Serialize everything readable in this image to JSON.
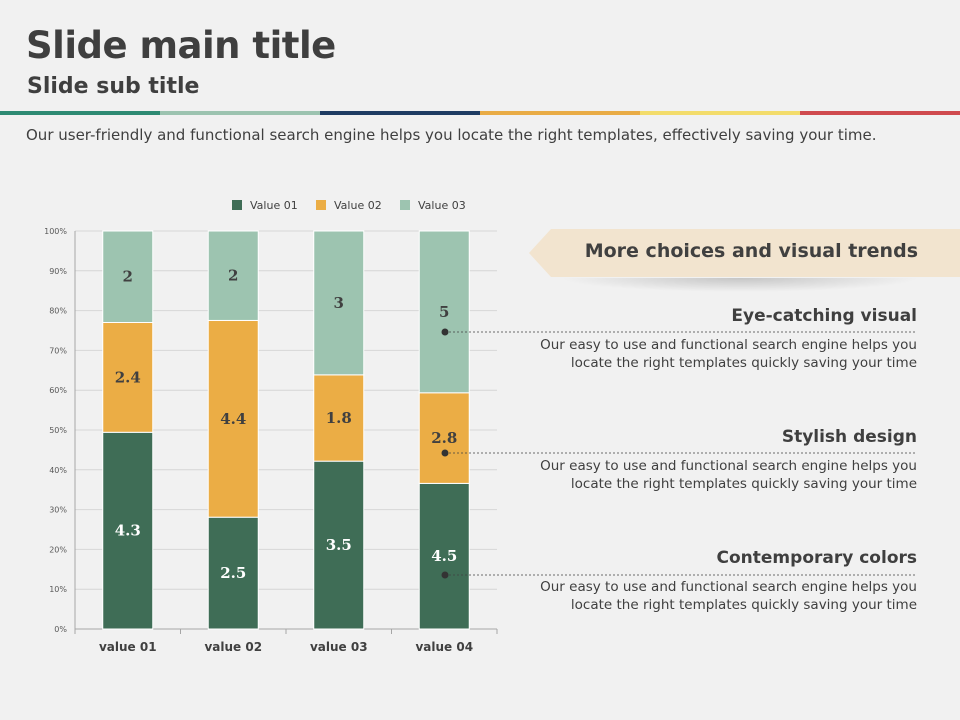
{
  "slide": {
    "title": "Slide main title",
    "subtitle": "Slide sub title",
    "intro": "Our user-friendly and functional search engine helps you locate the right templates, effectively saving your time.",
    "band_colors": [
      "#2e8a73",
      "#9cc3b0",
      "#1f3c63",
      "#e9ac46",
      "#f3dc6b",
      "#cf4a4e"
    ]
  },
  "chart_data": {
    "type": "bar",
    "stacking": "percent",
    "categories": [
      "value 01",
      "value 02",
      "value 03",
      "value 04"
    ],
    "series": [
      {
        "name": "Value 01",
        "values": [
          4.3,
          2.5,
          3.5,
          4.5
        ],
        "color": "#3f6d56",
        "label_color": "#ffffff"
      },
      {
        "name": "Value 02",
        "values": [
          2.4,
          4.4,
          1.8,
          2.8
        ],
        "color": "#ebad45",
        "label_color": "#404040"
      },
      {
        "name": "Value 03",
        "values": [
          2,
          2,
          3,
          5
        ],
        "color": "#9dc4b0",
        "label_color": "#404040"
      }
    ],
    "y_ticks": [
      "0%",
      "10%",
      "20%",
      "30%",
      "40%",
      "50%",
      "60%",
      "70%",
      "80%",
      "90%",
      "100%"
    ],
    "ylim": [
      0,
      100
    ],
    "grid": true,
    "legend_position": "top"
  },
  "banner": {
    "text": "More choices and visual trends",
    "color": "#f2e4cf"
  },
  "features": [
    {
      "title": "Eye-catching visual",
      "line1": "Our easy to use and functional search engine helps you",
      "line2": "locate the right templates quickly saving your time"
    },
    {
      "title": "Stylish design",
      "line1": "Our easy to use and functional search engine helps you",
      "line2": "locate the right templates quickly saving your time"
    },
    {
      "title": "Contemporary colors",
      "line1": "Our easy to use and functional search engine helps you",
      "line2": "locate the right templates quickly saving your time"
    }
  ]
}
